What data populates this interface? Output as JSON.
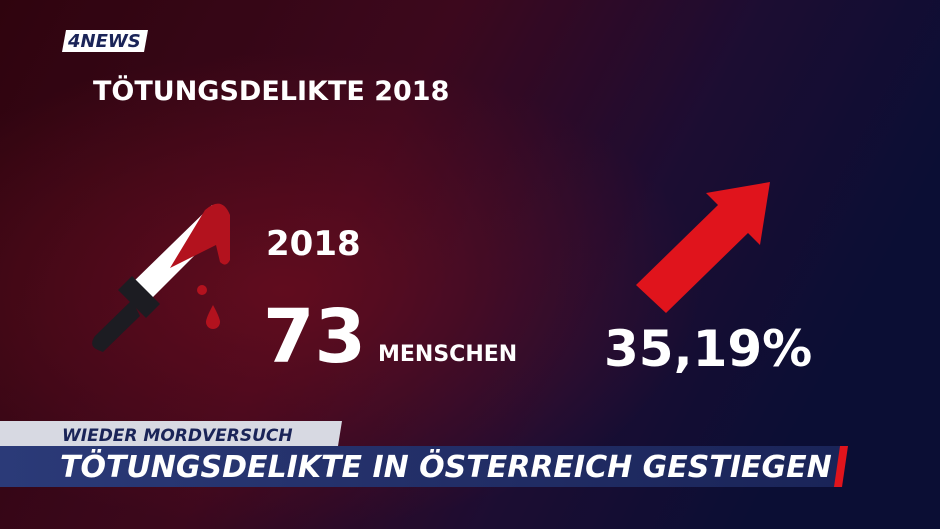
{
  "logo": "4NEWS",
  "title": "TÖTUNGSDELIKTE 2018",
  "stat": {
    "year": "2018",
    "count": "73",
    "unit": "MENSCHEN",
    "change": "35,19%"
  },
  "lower_third": {
    "kicker": "WIEDER MORDVERSUCH",
    "headline": "TÖTUNGSDELIKTE IN ÖSTERREICH GESTIEGEN"
  }
}
